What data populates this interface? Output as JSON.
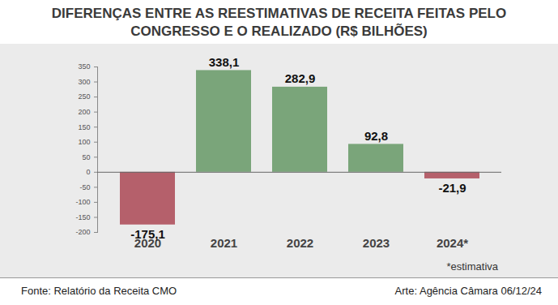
{
  "chart_data": {
    "type": "bar",
    "title": "DIFERENÇAS ENTRE AS REESTIMATIVAS DE RECEITA FEITAS PELO CONGRESSO E O REALIZADO (R$ BILHÕES)",
    "categories": [
      "2020",
      "2021",
      "2022",
      "2023",
      "2024*"
    ],
    "values": [
      -175.1,
      338.1,
      282.9,
      92.8,
      -21.9
    ],
    "value_labels": [
      "-175,1",
      "338,1",
      "282,9",
      "92,8",
      "-21,9"
    ],
    "colors": [
      "#b5606b",
      "#7aa57a",
      "#7aa57a",
      "#7aa57a",
      "#b5606b"
    ],
    "ylim": [
      -200,
      350
    ],
    "yticks": [
      -200,
      -150,
      -100,
      -50,
      0,
      50,
      100,
      150,
      200,
      250,
      300,
      350
    ],
    "grid": false,
    "data_labels": true,
    "annotations": [
      "*estimativa"
    ],
    "source": "Fonte: Relatório da Receita CMO",
    "credit": "Arte: Agência Câmara 06/12/24"
  }
}
